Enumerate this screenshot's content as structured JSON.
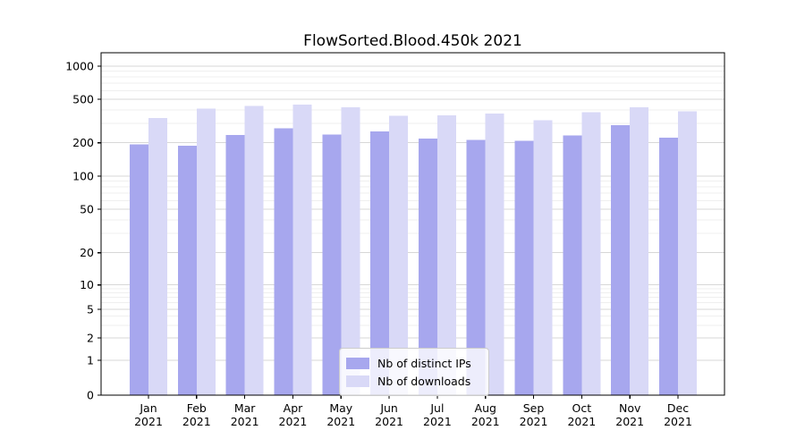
{
  "chart_data": {
    "type": "bar",
    "title": "FlowSorted.Blood.450k 2021",
    "categories": [
      "Jan 2021",
      "Feb 2021",
      "Mar 2021",
      "Apr 2021",
      "May 2021",
      "Jun 2021",
      "Jul 2021",
      "Aug 2021",
      "Sep 2021",
      "Oct 2021",
      "Nov 2021",
      "Dec 2021"
    ],
    "x_tick_line1": [
      "Jan",
      "Feb",
      "Mar",
      "Apr",
      "May",
      "Jun",
      "Jul",
      "Aug",
      "Sep",
      "Oct",
      "Nov",
      "Dec"
    ],
    "x_tick_line2": [
      "2021",
      "2021",
      "2021",
      "2021",
      "2021",
      "2021",
      "2021",
      "2021",
      "2021",
      "2021",
      "2021",
      "2021"
    ],
    "series": [
      {
        "name": "Nb of distinct IPs",
        "color": "#a7a7ee",
        "values": [
          193,
          189,
          235,
          272,
          237,
          255,
          218,
          212,
          209,
          233,
          291,
          222
        ]
      },
      {
        "name": "Nb of downloads",
        "color": "#d9d9f7",
        "values": [
          337,
          412,
          436,
          446,
          422,
          354,
          356,
          370,
          323,
          382,
          424,
          389
        ]
      }
    ],
    "y_axis": {
      "scale": "log-like with linear zero segment",
      "ticks": [
        0,
        1,
        2,
        5,
        10,
        20,
        50,
        100,
        200,
        500,
        1000
      ],
      "minor_ticks": [
        3,
        4,
        6,
        7,
        8,
        9,
        30,
        40,
        60,
        70,
        80,
        90,
        300,
        400,
        600,
        700,
        800,
        900
      ],
      "tick_anchors": [
        [
          0,
          0.0
        ],
        [
          1,
          0.102
        ],
        [
          2,
          0.167
        ],
        [
          5,
          0.251
        ],
        [
          10,
          0.322
        ],
        [
          20,
          0.416
        ],
        [
          50,
          0.543
        ],
        [
          100,
          0.64
        ],
        [
          200,
          0.737
        ],
        [
          500,
          0.864
        ],
        [
          1000,
          0.961
        ]
      ],
      "ylim": [
        0,
        1200
      ]
    },
    "grid": true,
    "legend_position": "lower center",
    "colors": {
      "major_grid": "#d7d7d7",
      "minor_grid": "#efefef",
      "spine": "#000000",
      "text": "#000000",
      "background": "#ffffff"
    }
  }
}
